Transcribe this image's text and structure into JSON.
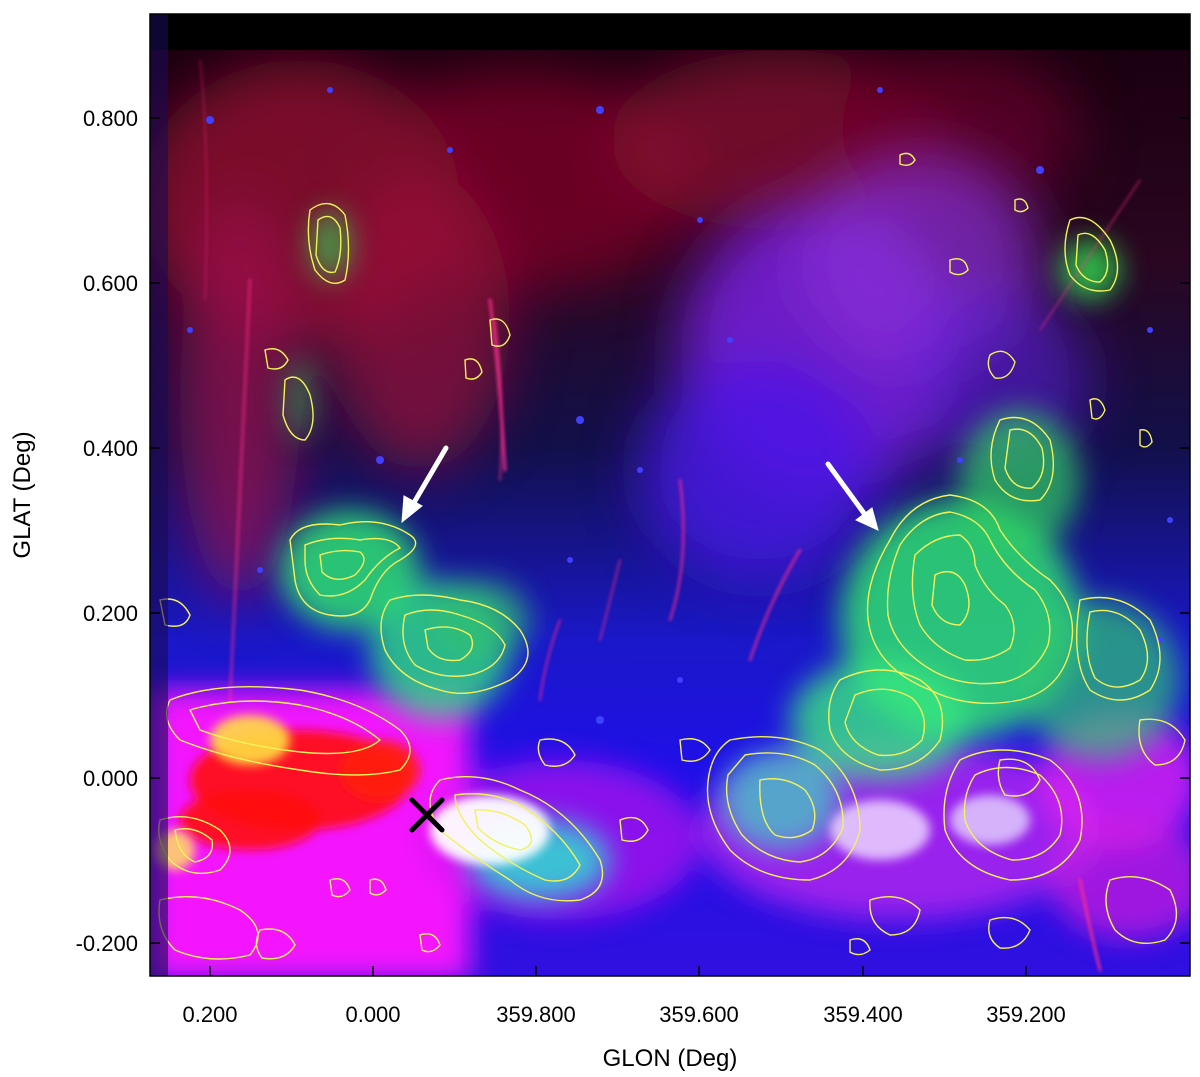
{
  "figure": {
    "xlabel": "GLON (Deg)",
    "ylabel": "GLAT (Deg)",
    "x_ticks": [
      "0.200",
      "0.000",
      "359.800",
      "359.600",
      "359.400",
      "359.200"
    ],
    "y_ticks": [
      "0.800",
      "0.600",
      "0.400",
      "0.200",
      "0.000",
      "-0.200"
    ],
    "colors": {
      "background_red": "#b0103a",
      "background_blue": "#1a10e6",
      "magenta": "#ff18ff",
      "green": "#2ee07a",
      "contour": "#f2f25a",
      "marker": "#000000",
      "arrow": "#ffffff"
    },
    "marker_icon": "x-cross-marker",
    "arrow_icon": "arrow-pointer"
  }
}
